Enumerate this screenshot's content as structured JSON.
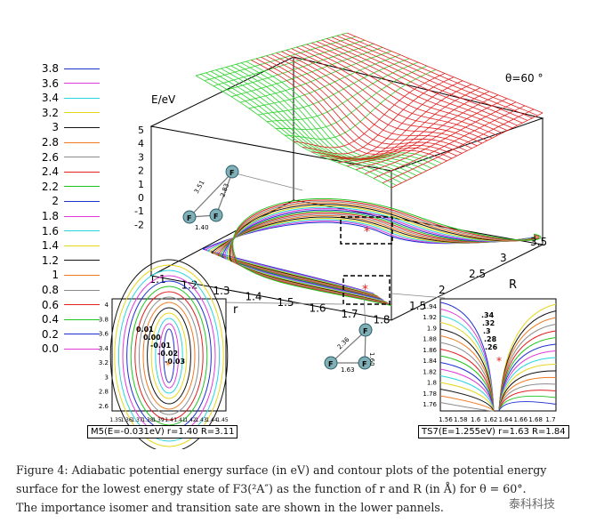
{
  "figure": {
    "theta_label": "θ=60 °",
    "energy_axis_label": "E/eV",
    "energy_ticks": [
      "5",
      "4",
      "3",
      "2",
      "1",
      "0",
      "-1",
      "-2"
    ],
    "r_axis_label": "r",
    "r_ticks": [
      "1.1",
      "1.2",
      "1.3",
      "1.4",
      "1.5",
      "1.6",
      "1.7",
      "1.8"
    ],
    "R_axis_label": "R",
    "R_ticks": [
      "1.5",
      "2",
      "2.5",
      "3",
      "3.5"
    ],
    "legend": [
      {
        "label": "3.8",
        "color": "#1f2fd1"
      },
      {
        "label": "3.6",
        "color": "#e03ad8"
      },
      {
        "label": "3.4",
        "color": "#27d6e0"
      },
      {
        "label": "3.2",
        "color": "#e6d81c"
      },
      {
        "label": "3",
        "color": "#111111"
      },
      {
        "label": "2.8",
        "color": "#f07a22"
      },
      {
        "label": "2.6",
        "color": "#8a8a8a"
      },
      {
        "label": "2.4",
        "color": "#e32020"
      },
      {
        "label": "2.2",
        "color": "#1fc41f"
      },
      {
        "label": "2",
        "color": "#1f2fd1"
      },
      {
        "label": "1.8",
        "color": "#e03ad8"
      },
      {
        "label": "1.6",
        "color": "#27d6e0"
      },
      {
        "label": "1.4",
        "color": "#e6d81c"
      },
      {
        "label": "1.2",
        "color": "#111111"
      },
      {
        "label": "1",
        "color": "#f07a22"
      },
      {
        "label": "0.8",
        "color": "#8a8a8a"
      },
      {
        "label": "0.6",
        "color": "#e32020"
      },
      {
        "label": "0.4",
        "color": "#1fc41f"
      },
      {
        "label": "0.2",
        "color": "#1f2fd1"
      },
      {
        "label": "0.0",
        "color": "#e03ad8"
      }
    ],
    "molecule_top": {
      "atom": "F",
      "bond_a": "3.51",
      "bond_b": "2.83",
      "bond_c": "1.40"
    },
    "molecule_center": {
      "atom": "F",
      "bond_a": "2.36",
      "bond_b": "1.60",
      "bond_c": "1.63"
    },
    "inset_left": {
      "label": "M5(E=-0.031eV) r=1.40 R=3.11",
      "x_ticks": [
        "1.35",
        "1.36",
        "1.37",
        "1.38",
        "1.39",
        "1.4",
        "1.41",
        "1.42",
        "1.43",
        "1.44",
        "1.45"
      ],
      "y_ticks": [
        "4",
        "3.8",
        "3.6",
        "3.4",
        "3.2",
        "3",
        "2.8",
        "2.6"
      ],
      "contour_labels": [
        "0.01",
        "0.00",
        "-0.01",
        "-0.02",
        "-0.03"
      ]
    },
    "inset_right": {
      "label": "TS7(E=1.255eV) r=1.63 R=1.84",
      "x_ticks": [
        "1.56",
        "1.58",
        "1.6",
        "1.62",
        "1.64",
        "1.66",
        "1.68",
        "1.7"
      ],
      "y_ticks": [
        "1.94",
        "1.92",
        "1.9",
        "1.88",
        "1.86",
        "1.84",
        "1.82",
        "1.8",
        "1.78",
        "1.76"
      ],
      "contour_labels": [
        ".34",
        ".32",
        ".3",
        ".28",
        ".26"
      ]
    }
  },
  "caption": {
    "line1": "Figure 4: Adiabatic potential energy surface (in eV) and contour plots of the potential energy",
    "line2": "surface for the lowest energy state of F3(²A″) as the function of r and R (in Å) for θ = 60°.",
    "line3": "The importance isomer and transition sate are shown in the lower pannels."
  },
  "watermark": "泰科科技"
}
